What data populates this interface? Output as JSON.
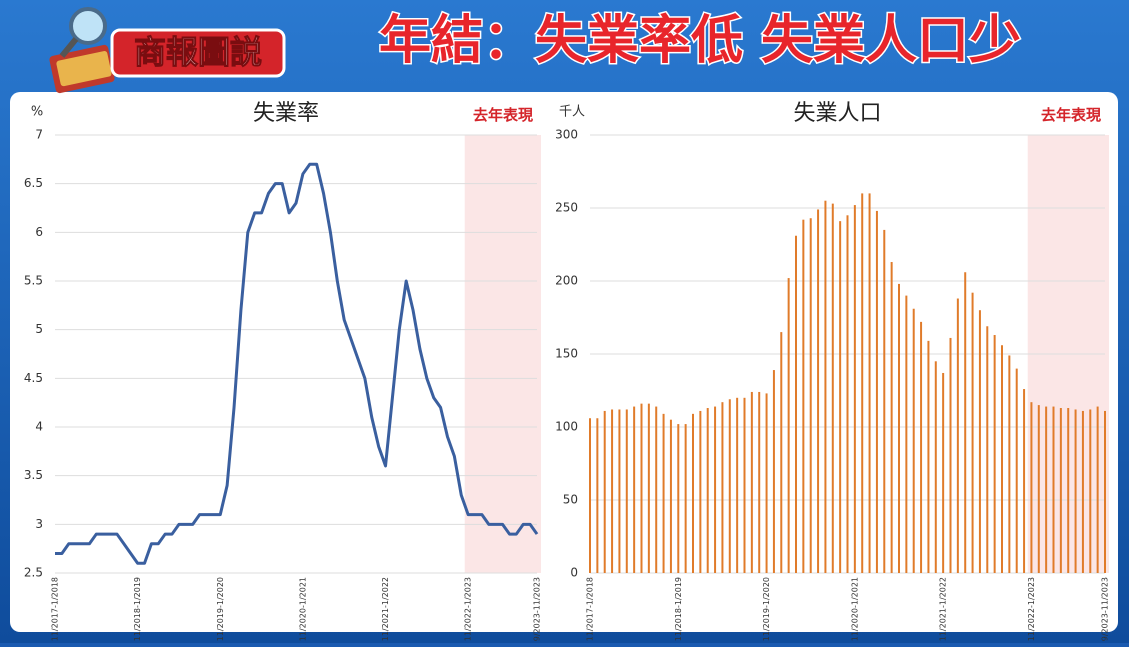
{
  "header": {
    "badge": "商報圖説",
    "title": "年結：失業率低 失業人口少"
  },
  "chart_data": [
    {
      "type": "line",
      "title": "失業率",
      "y_label": "%",
      "color": "#3a5f9f",
      "grid": true,
      "highlight": {
        "label": "去年表現",
        "start": 60
      },
      "categories": [
        "11/2017-1/2018",
        null,
        null,
        null,
        null,
        null,
        null,
        null,
        null,
        null,
        null,
        null,
        "11/2018-1/2019",
        null,
        null,
        null,
        null,
        null,
        null,
        null,
        null,
        null,
        null,
        null,
        "11/2019-1/2020",
        null,
        null,
        null,
        null,
        null,
        null,
        null,
        null,
        null,
        null,
        null,
        "11/2020-1/2021",
        null,
        null,
        null,
        null,
        null,
        null,
        null,
        null,
        null,
        null,
        null,
        "11/2021-1/2022",
        null,
        null,
        null,
        null,
        null,
        null,
        null,
        null,
        null,
        null,
        null,
        "11/2022-1/2023",
        null,
        null,
        null,
        null,
        null,
        null,
        null,
        null,
        null,
        "9/2023-11/2023"
      ],
      "values": [
        2.7,
        2.7,
        2.8,
        2.8,
        2.8,
        2.8,
        2.9,
        2.9,
        2.9,
        2.9,
        2.8,
        2.7,
        2.6,
        2.6,
        2.8,
        2.8,
        2.9,
        2.9,
        3.0,
        3.0,
        3.0,
        3.1,
        3.1,
        3.1,
        3.1,
        3.4,
        4.2,
        5.2,
        6.0,
        6.2,
        6.2,
        6.4,
        6.5,
        6.5,
        6.2,
        6.3,
        6.6,
        6.7,
        6.7,
        6.4,
        6.0,
        5.5,
        5.1,
        4.9,
        4.7,
        4.5,
        4.1,
        3.8,
        3.6,
        4.3,
        5.0,
        5.5,
        5.2,
        4.8,
        4.5,
        4.3,
        4.2,
        3.9,
        3.7,
        3.3,
        3.1,
        3.1,
        3.1,
        3.0,
        3.0,
        3.0,
        2.9,
        2.9,
        3.0,
        3.0,
        2.9
      ],
      "ylim": [
        2.5,
        7
      ],
      "yticks": [
        2.5,
        3,
        3.5,
        4,
        4.5,
        5,
        5.5,
        6,
        6.5,
        7
      ]
    },
    {
      "type": "bar",
      "title": "失業人口",
      "y_label": "千人",
      "color": "#e07b2a",
      "grid": true,
      "highlight": {
        "label": "去年表現",
        "start": 60
      },
      "categories": [
        "11/2017-1/2018",
        null,
        null,
        null,
        null,
        null,
        null,
        null,
        null,
        null,
        null,
        null,
        "11/2018-1/2019",
        null,
        null,
        null,
        null,
        null,
        null,
        null,
        null,
        null,
        null,
        null,
        "11/2019-1/2020",
        null,
        null,
        null,
        null,
        null,
        null,
        null,
        null,
        null,
        null,
        null,
        "11/2020-1/2021",
        null,
        null,
        null,
        null,
        null,
        null,
        null,
        null,
        null,
        null,
        null,
        "11/2021-1/2022",
        null,
        null,
        null,
        null,
        null,
        null,
        null,
        null,
        null,
        null,
        null,
        "11/2022-1/2023",
        null,
        null,
        null,
        null,
        null,
        null,
        null,
        null,
        null,
        "9/2023-11/2023"
      ],
      "values": [
        106,
        106,
        111,
        112,
        112,
        112,
        114,
        116,
        116,
        114,
        109,
        105,
        102,
        102,
        109,
        111,
        113,
        114,
        117,
        119,
        120,
        120,
        124,
        124,
        123,
        139,
        165,
        202,
        231,
        242,
        243,
        249,
        255,
        253,
        241,
        245,
        252,
        260,
        260,
        248,
        235,
        213,
        198,
        190,
        181,
        172,
        159,
        145,
        137,
        161,
        188,
        206,
        192,
        180,
        169,
        163,
        156,
        149,
        140,
        126,
        117,
        115,
        114,
        114,
        113,
        113,
        112,
        111,
        112,
        114,
        111
      ],
      "ylim": [
        0,
        300
      ],
      "yticks": [
        0,
        50,
        100,
        150,
        200,
        250,
        300
      ]
    }
  ]
}
